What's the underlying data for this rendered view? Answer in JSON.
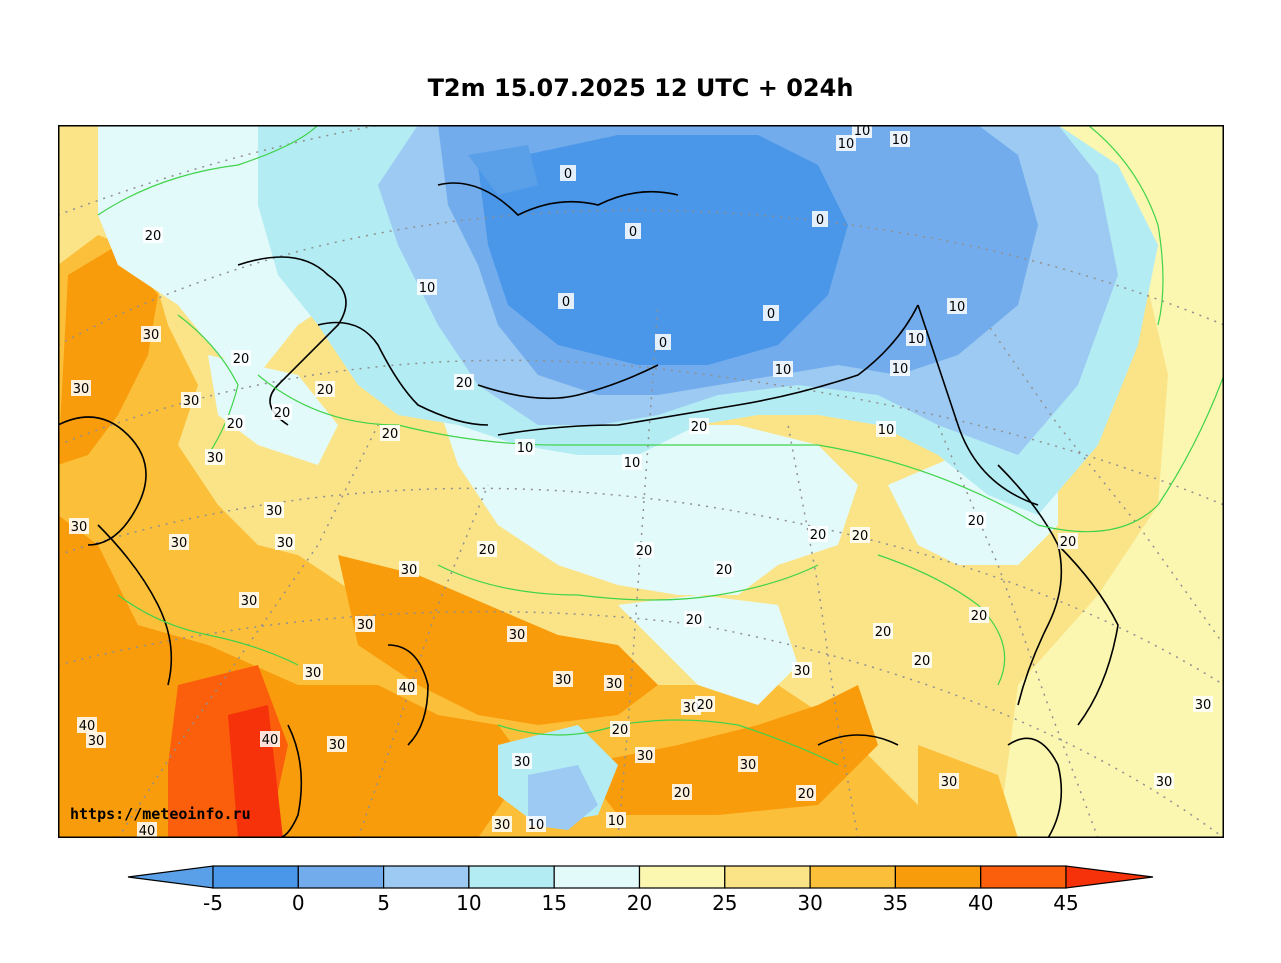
{
  "title": "T2m 15.07.2025 12 UTC + 024h",
  "credit": "https://meteoinfo.ru",
  "colorbar": {
    "ticks": [
      "-5",
      "0",
      "5",
      "10",
      "15",
      "20",
      "25",
      "30",
      "35",
      "40",
      "45"
    ],
    "colors": [
      "#5aa0e8",
      "#4a96e8",
      "#72acec",
      "#9ccaf2",
      "#b4ecf4",
      "#e2fafa",
      "#fbf6b0",
      "#fbe488",
      "#fbbf3a",
      "#f99c0c",
      "#fb5f0c",
      "#f6320a"
    ],
    "bins": [
      {
        "from": null,
        "to": -5
      },
      {
        "from": -5,
        "to": 0
      },
      {
        "from": 0,
        "to": 5
      },
      {
        "from": 5,
        "to": 10
      },
      {
        "from": 10,
        "to": 15
      },
      {
        "from": 15,
        "to": 20
      },
      {
        "from": 20,
        "to": 25
      },
      {
        "from": 25,
        "to": 30
      },
      {
        "from": 30,
        "to": 35
      },
      {
        "from": 35,
        "to": 40
      },
      {
        "from": 40,
        "to": 45
      },
      {
        "from": 45,
        "to": null
      }
    ]
  },
  "contour_labels": [
    "20",
    "10",
    "10",
    "10",
    "0",
    "0",
    "0",
    "0",
    "0",
    "0",
    "10",
    "20",
    "30",
    "30",
    "30",
    "20",
    "20",
    "20",
    "20",
    "20",
    "10",
    "10",
    "10",
    "10",
    "10",
    "10",
    "10",
    "20",
    "30",
    "30",
    "30",
    "30",
    "30",
    "30",
    "30",
    "20",
    "20",
    "20",
    "20",
    "20",
    "20",
    "20",
    "20",
    "20",
    "20",
    "20",
    "30",
    "30",
    "30",
    "30",
    "30",
    "30",
    "30",
    "30",
    "30",
    "40",
    "40",
    "40",
    "40",
    "30",
    "30",
    "30",
    "30",
    "20",
    "30",
    "20",
    "20",
    "10",
    "10",
    "30",
    "30",
    "20"
  ]
}
